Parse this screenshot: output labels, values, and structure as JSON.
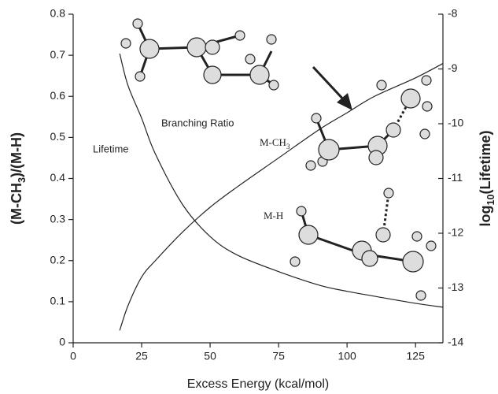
{
  "chart_data": {
    "type": "line",
    "x": [
      17,
      20,
      25,
      30,
      40,
      50,
      60,
      75,
      90,
      100,
      110,
      125,
      135
    ],
    "series": [
      {
        "name": "Branching Ratio",
        "color": "#222222",
        "values": [
          0.03,
          0.09,
          0.16,
          0.2,
          0.27,
          0.33,
          0.38,
          0.45,
          0.52,
          0.56,
          0.6,
          0.645,
          0.68
        ]
      },
      {
        "name": "Lifetime",
        "color": "#222222",
        "axis": "y2",
        "values": [
          -8.72,
          -9.3,
          -9.9,
          -10.55,
          -11.48,
          -12.06,
          -12.4,
          -12.7,
          -12.95,
          -13.06,
          -13.15,
          -13.28,
          -13.35
        ]
      }
    ],
    "xlabel": "Excess Energy (kcal/mol)",
    "ylabel": [
      "(M-CH",
      "3",
      ")/(M-H)"
    ],
    "y2label": [
      "log",
      "10",
      "(Lifetime)"
    ],
    "annotations": [
      [
        "M-CH",
        "3"
      ],
      [
        "M-H"
      ]
    ],
    "xlim": [
      0,
      135
    ],
    "xticks": [
      0,
      25,
      50,
      75,
      100,
      125
    ],
    "ylim": [
      0,
      0.8
    ],
    "yticks": [
      0,
      0.1,
      0.2,
      0.3,
      0.4,
      0.5,
      0.6,
      0.7,
      0.8
    ],
    "y2lim": [
      -14,
      -8
    ],
    "y2ticks": [
      -14,
      -13,
      -12,
      -11,
      -10,
      -9,
      -8
    ]
  }
}
